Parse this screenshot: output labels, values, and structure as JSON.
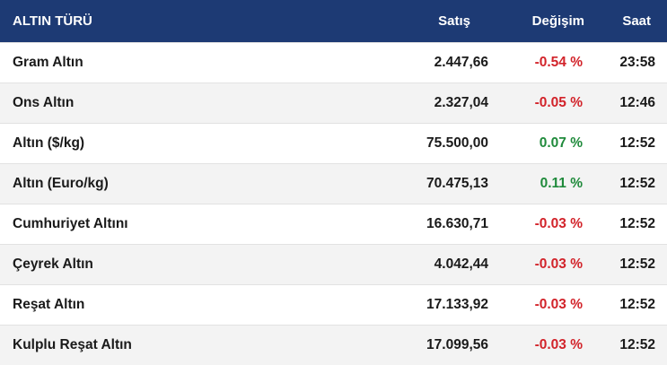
{
  "header": {
    "name": "ALTIN TÜRÜ",
    "sale": "Satış",
    "change": "Değişim",
    "time": "Saat"
  },
  "rows": [
    {
      "name": "Gram Altın",
      "sale": "2.447,66",
      "change": "-0.54 %",
      "time": "23:58",
      "trend": "neg"
    },
    {
      "name": "Ons Altın",
      "sale": "2.327,04",
      "change": "-0.05 %",
      "time": "12:46",
      "trend": "neg"
    },
    {
      "name": "Altın ($/kg)",
      "sale": "75.500,00",
      "change": "0.07 %",
      "time": "12:52",
      "trend": "pos"
    },
    {
      "name": "Altın (Euro/kg)",
      "sale": "70.475,13",
      "change": "0.11 %",
      "time": "12:52",
      "trend": "pos"
    },
    {
      "name": "Cumhuriyet Altını",
      "sale": "16.630,71",
      "change": "-0.03 %",
      "time": "12:52",
      "trend": "neg"
    },
    {
      "name": "Çeyrek Altın",
      "sale": "4.042,44",
      "change": "-0.03 %",
      "time": "12:52",
      "trend": "neg"
    },
    {
      "name": "Reşat Altın",
      "sale": "17.133,92",
      "change": "-0.03 %",
      "time": "12:52",
      "trend": "neg"
    },
    {
      "name": "Kulplu Reşat Altın",
      "sale": "17.099,56",
      "change": "-0.03 %",
      "time": "12:52",
      "trend": "neg"
    }
  ],
  "colors": {
    "header_bg": "#1d3a74",
    "positive": "#1f8a3b",
    "negative": "#d2232a"
  }
}
